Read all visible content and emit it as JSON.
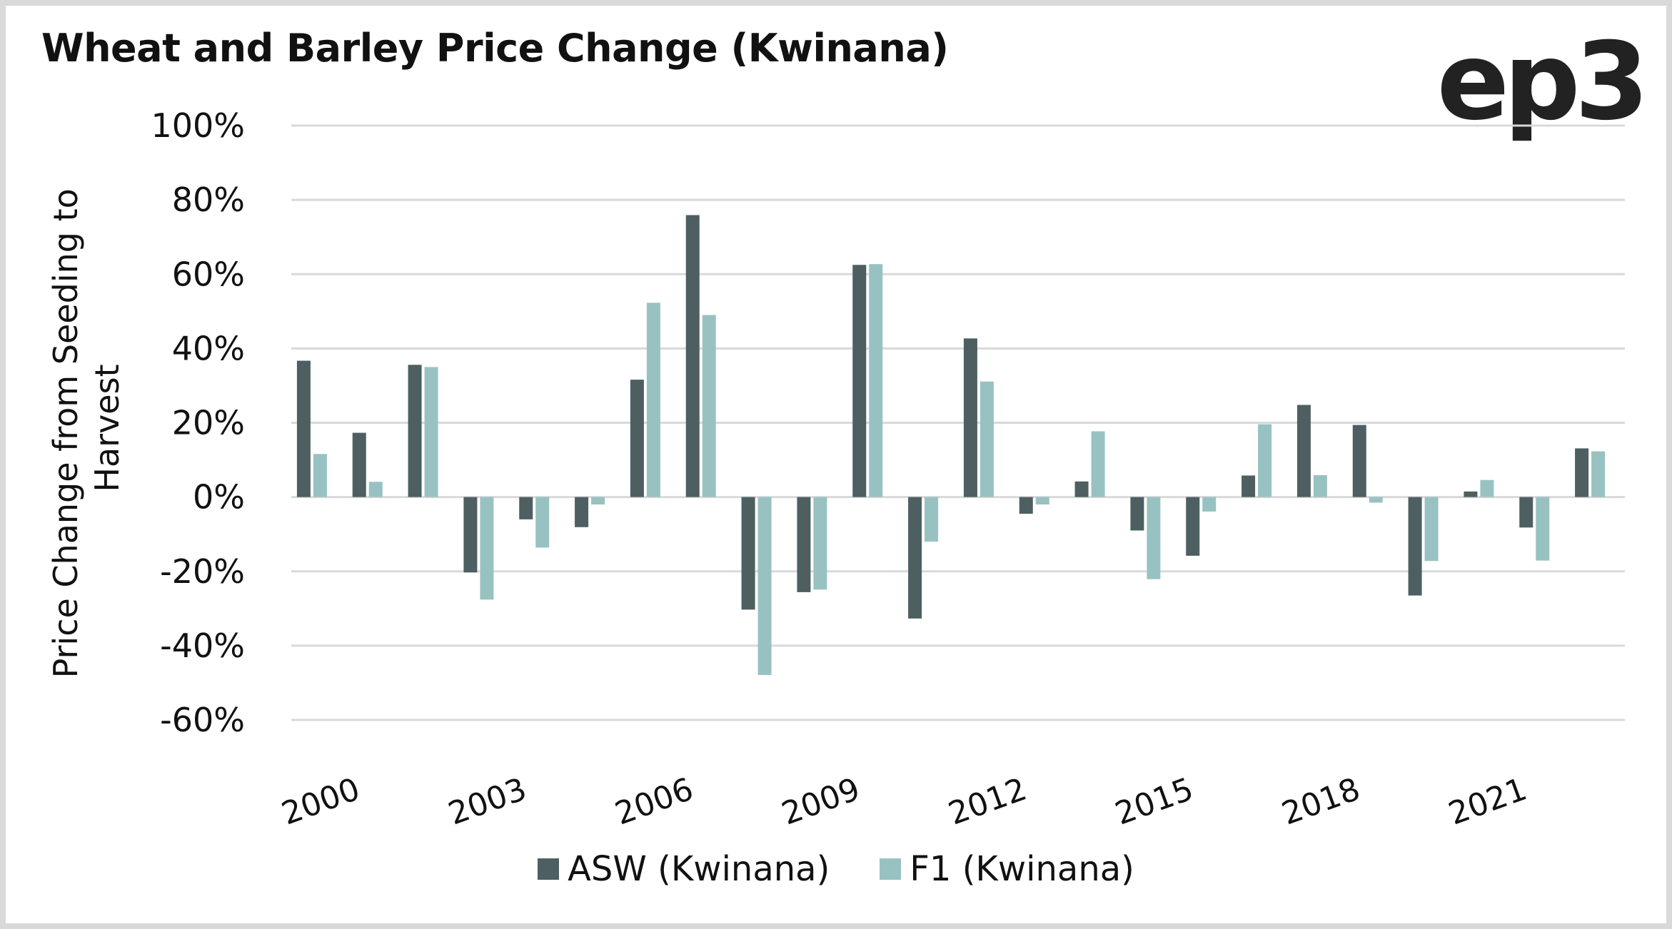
{
  "header": {
    "title": "Wheat and Barley Price Change (Kwinana)",
    "logo_text": "ep3"
  },
  "colors": {
    "asw": "#4d5f61",
    "f1": "#98c2c1",
    "grid": "#d9d9d9",
    "text": "#111111"
  },
  "chart_data": {
    "type": "bar",
    "title": "Wheat and Barley Price Change (Kwinana)",
    "xlabel": "",
    "ylabel": "Price Change from Seeding to Harvest",
    "ylim": [
      -60,
      100
    ],
    "yticks": [
      100,
      80,
      60,
      40,
      20,
      0,
      -20,
      -40,
      -60
    ],
    "ytick_labels": [
      "100%",
      "80%",
      "60%",
      "40%",
      "20%",
      "0%",
      "-20%",
      "-40%",
      "-60%"
    ],
    "grid": true,
    "legend_position": "bottom",
    "categories": [
      "2000",
      "2001",
      "2002",
      "2003",
      "2004",
      "2005",
      "2006",
      "2007",
      "2008",
      "2009",
      "2010",
      "2011",
      "2012",
      "2013",
      "2014",
      "2015",
      "2016",
      "2017",
      "2018",
      "2019",
      "2020",
      "2021",
      "2022",
      "2023"
    ],
    "xtick_labels": [
      "2000",
      "2003",
      "2006",
      "2009",
      "2012",
      "2015",
      "2018",
      "2021"
    ],
    "series": [
      {
        "name": "ASW (Kwinana)",
        "values": [
          36.7,
          17.3,
          35.6,
          -20.3,
          -6.0,
          -8.1,
          31.6,
          75.9,
          -30.3,
          -25.6,
          62.5,
          -32.7,
          42.7,
          -4.5,
          4.2,
          -9.0,
          -15.8,
          5.8,
          24.8,
          19.4,
          -26.5,
          1.5,
          -8.2,
          13.1
        ]
      },
      {
        "name": "F1 (Kwinana)",
        "values": [
          11.6,
          4.1,
          35.0,
          -27.6,
          -13.6,
          -2.0,
          52.3,
          49.0,
          -47.9,
          -24.9,
          62.7,
          -12.0,
          31.1,
          -2.0,
          17.7,
          -22.1,
          -3.9,
          19.6,
          5.9,
          -1.5,
          -17.2,
          4.6,
          -17.1,
          12.3
        ]
      }
    ]
  }
}
